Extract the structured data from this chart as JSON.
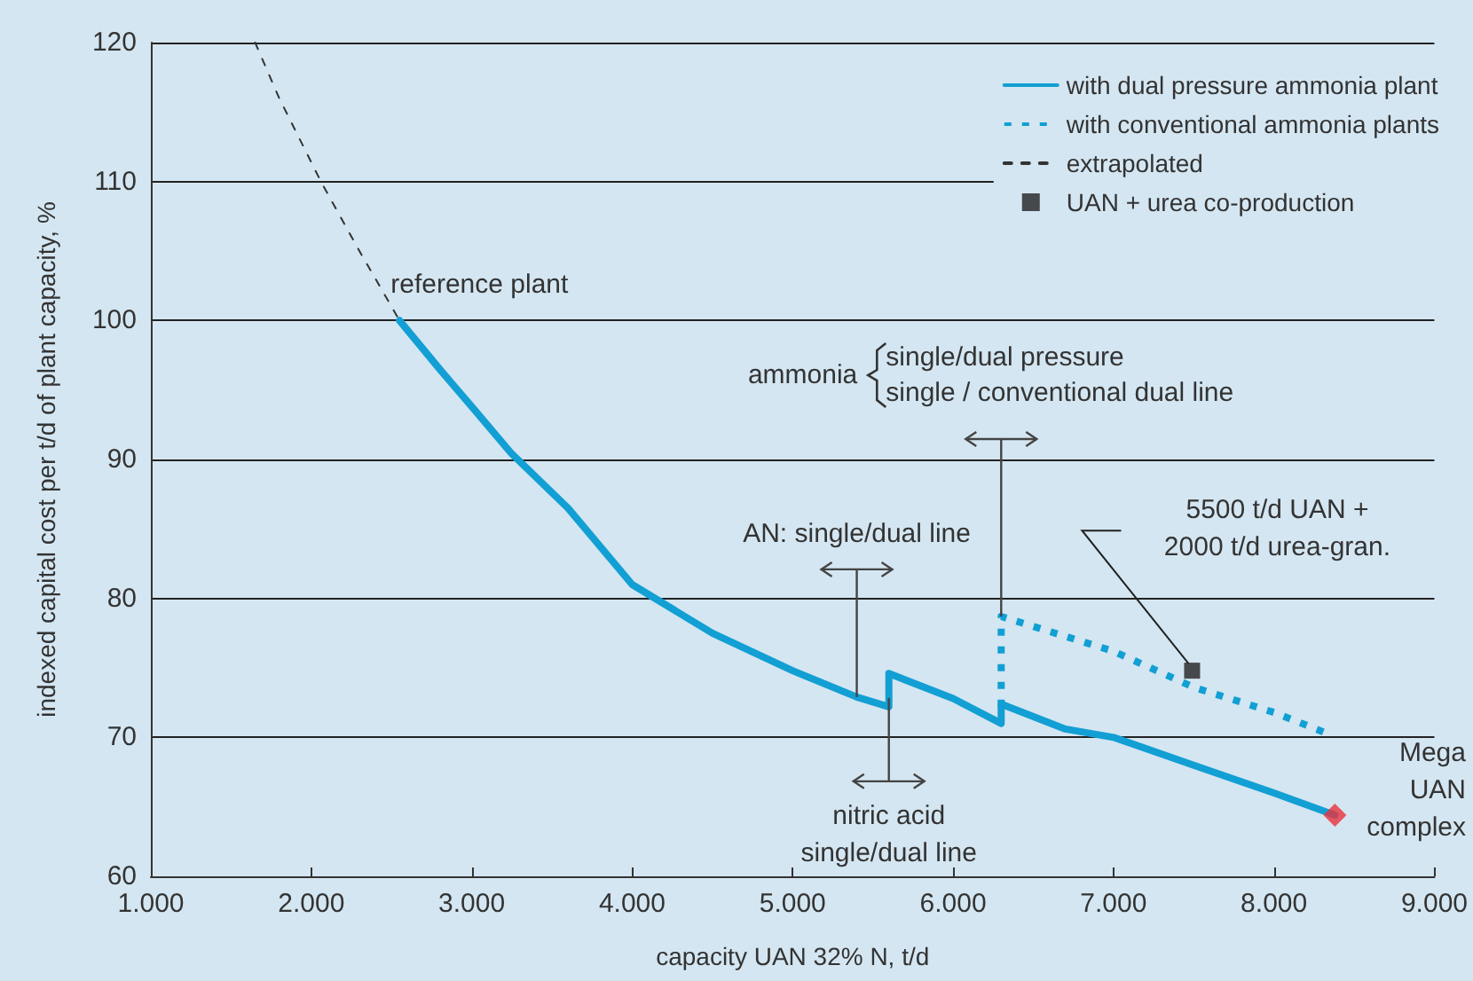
{
  "chart_data": {
    "type": "line",
    "xlabel": "capacity UAN 32% N, t/d",
    "ylabel": "indexed capital cost per t/d of plant capacity, %",
    "xlim": [
      1000,
      9000
    ],
    "xticks": [
      {
        "value": 1000,
        "label": "1.000"
      },
      {
        "value": 2000,
        "label": "2.000"
      },
      {
        "value": 3000,
        "label": "3.000"
      },
      {
        "value": 4000,
        "label": "4.000"
      },
      {
        "value": 5000,
        "label": "5.000"
      },
      {
        "value": 6000,
        "label": "6.000"
      },
      {
        "value": 7000,
        "label": "7.000"
      },
      {
        "value": 8000,
        "label": "8.000"
      },
      {
        "value": 9000,
        "label": "9.000"
      }
    ],
    "ylim": [
      60,
      120
    ],
    "yticks": [
      60,
      70,
      80,
      90,
      100,
      110,
      120
    ],
    "grid": "y",
    "legend": "top right",
    "marker": "none",
    "series": [
      {
        "name": "with dual pressure ammonia plant",
        "color": "#129fd4",
        "line_style": "solid",
        "x": [
          2550,
          2800,
          3000,
          3250,
          3600,
          4000,
          4500,
          5000,
          5400,
          5600,
          5600,
          6000,
          6300,
          6300,
          6700,
          7000,
          7500,
          8000,
          8380
        ],
        "values": [
          100,
          96.5,
          93.8,
          90.4,
          86.5,
          81,
          77.5,
          74.8,
          72.9,
          72.2,
          74.6,
          72.8,
          71.0,
          72.4,
          70.6,
          70.0,
          68.0,
          66.0,
          64.4
        ]
      },
      {
        "name": "with conventional ammonia plants",
        "color": "#129fd4",
        "line_style": "dotted",
        "x": [
          6300,
          6300,
          7000,
          7500,
          8000,
          8350
        ],
        "values": [
          72.2,
          78.7,
          76.2,
          73.6,
          71.8,
          70.2
        ]
      },
      {
        "name": "extrapolated",
        "color": "#333333",
        "line_style": "dashed",
        "x": [
          1650,
          1800,
          2060,
          2300,
          2550
        ],
        "values": [
          120,
          116,
          110,
          105,
          100
        ]
      },
      {
        "name": "UAN + urea co-production",
        "type": "scatter",
        "marker": "square",
        "color": "#222222",
        "x": [
          7490
        ],
        "values": [
          74.8
        ]
      },
      {
        "type": "scatter",
        "marker": "diamond",
        "color": "#e8323c",
        "x": [
          8380
        ],
        "values": [
          64.4
        ]
      }
    ],
    "annotations": [
      {
        "text": "reference plant",
        "x": 2550,
        "y": 100
      },
      {
        "text": "AN: single/dual line",
        "x": 5400,
        "y": 72.9
      },
      {
        "text": "nitric acid\nsingle/dual line",
        "x": 5600,
        "y": 72.2
      },
      "ammonia",
      "single/dual pressure",
      {
        "text": "single / conventional dual line",
        "x": 6300,
        "y": 78.7
      },
      "5500 t/d UAN +\n2000 t/d urea-gran.",
      {
        "text": "Mega\nUAN\ncomplex",
        "x": 8380,
        "y": 64.4
      }
    ]
  }
}
